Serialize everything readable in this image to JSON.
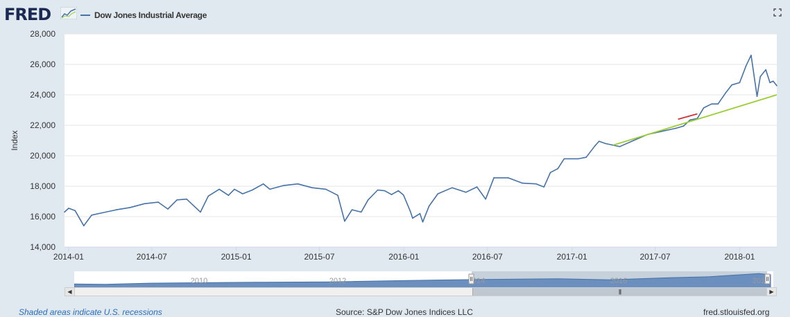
{
  "header": {
    "logo_text": "FRED",
    "series_label": "Dow Jones Industrial Average",
    "fullscreen_icon": "fullscreen-icon"
  },
  "footer": {
    "recessions_note": "Shaded areas indicate U.S. recessions",
    "source": "Source: S&P Dow Jones Indices LLC",
    "site": "fred.stlouisfed.org"
  },
  "navigator": {
    "year_labels": [
      "2010",
      "2012",
      "2014",
      "2016",
      "2018"
    ],
    "left_arrow_icon": "left-arrow-icon",
    "right_arrow_icon": "right-arrow-icon",
    "grip_icon": "grip-icon"
  },
  "colors": {
    "series": "#4572a7",
    "trend_green": "#9acd32",
    "trend_red": "#cc3333",
    "plot_bg": "#ffffff",
    "page_bg": "#e1e9f0"
  },
  "chart_data": {
    "type": "line",
    "title": "Dow Jones Industrial Average",
    "xlabel": "",
    "ylabel": "Index",
    "ylim": [
      14000,
      28000
    ],
    "yticks": [
      14000,
      16000,
      18000,
      20000,
      22000,
      24000,
      26000,
      28000
    ],
    "ytick_labels": [
      "14,000",
      "16,000",
      "18,000",
      "20,000",
      "22,000",
      "24,000",
      "26,000",
      "28,000"
    ],
    "xlim": [
      "2013-12-23",
      "2018-03-23"
    ],
    "xticks": [
      "2014-01-01",
      "2014-07-01",
      "2015-01-01",
      "2015-07-01",
      "2016-01-01",
      "2016-07-01",
      "2017-01-01",
      "2017-07-01",
      "2018-01-01"
    ],
    "xtick_labels": [
      "2014-01",
      "2014-07",
      "2015-01",
      "2015-07",
      "2016-01",
      "2016-07",
      "2017-01",
      "2017-07",
      "2018-01"
    ],
    "grid": "horizontal",
    "legend": "top-left",
    "series": [
      {
        "name": "Dow Jones Industrial Average",
        "x": [
          "2013-12-23",
          "2014-01-01",
          "2014-01-15",
          "2014-02-03",
          "2014-02-20",
          "2014-03-15",
          "2014-04-15",
          "2014-05-15",
          "2014-06-15",
          "2014-07-15",
          "2014-08-05",
          "2014-08-25",
          "2014-09-15",
          "2014-10-15",
          "2014-11-01",
          "2014-11-25",
          "2014-12-15",
          "2014-12-28",
          "2015-01-15",
          "2015-02-05",
          "2015-03-01",
          "2015-03-15",
          "2015-04-15",
          "2015-05-15",
          "2015-06-15",
          "2015-07-15",
          "2015-08-10",
          "2015-08-25",
          "2015-09-10",
          "2015-09-30",
          "2015-10-15",
          "2015-11-05",
          "2015-11-20",
          "2015-12-05",
          "2015-12-20",
          "2015-12-31",
          "2016-01-15",
          "2016-01-20",
          "2016-02-05",
          "2016-02-11",
          "2016-02-25",
          "2016-03-15",
          "2016-04-15",
          "2016-05-15",
          "2016-06-08",
          "2016-06-27",
          "2016-07-15",
          "2016-08-15",
          "2016-09-15",
          "2016-10-15",
          "2016-11-01",
          "2016-11-15",
          "2016-12-01",
          "2016-12-15",
          "2017-01-15",
          "2017-02-01",
          "2017-02-20",
          "2017-03-01",
          "2017-03-15",
          "2017-04-15",
          "2017-05-15",
          "2017-06-15",
          "2017-07-15",
          "2017-08-15",
          "2017-09-01",
          "2017-09-15",
          "2017-10-01",
          "2017-10-15",
          "2017-11-01",
          "2017-11-15",
          "2017-12-01",
          "2017-12-15",
          "2018-01-01",
          "2018-01-15",
          "2018-01-26",
          "2018-02-08",
          "2018-02-15",
          "2018-02-27",
          "2018-03-08",
          "2018-03-15",
          "2018-03-23"
        ],
        "values": [
          16300,
          16550,
          16400,
          15400,
          16100,
          16250,
          16450,
          16600,
          16850,
          16950,
          16500,
          17100,
          17150,
          16300,
          17350,
          17800,
          17400,
          17800,
          17500,
          17750,
          18150,
          17800,
          18050,
          18150,
          17900,
          17800,
          17400,
          15700,
          16450,
          16300,
          17100,
          17750,
          17700,
          17450,
          17700,
          17425,
          16350,
          15900,
          16200,
          15650,
          16700,
          17500,
          17900,
          17600,
          17950,
          17150,
          18550,
          18550,
          18200,
          18150,
          17950,
          18900,
          19150,
          19800,
          19800,
          19900,
          20650,
          20950,
          20800,
          20600,
          21000,
          21400,
          21600,
          21800,
          21950,
          22350,
          22450,
          23150,
          23400,
          23400,
          24100,
          24650,
          24800,
          25900,
          26600,
          23900,
          25200,
          25650,
          24800,
          24900,
          24600
        ]
      }
    ],
    "trendlines": [
      {
        "name": "",
        "x": [
          "2017-04-01",
          "2018-03-23"
        ],
        "values": [
          20700,
          24000
        ]
      },
      {
        "name": "",
        "x": [
          "2017-08-20",
          "2017-10-01"
        ],
        "values": [
          22400,
          22750
        ]
      }
    ]
  }
}
